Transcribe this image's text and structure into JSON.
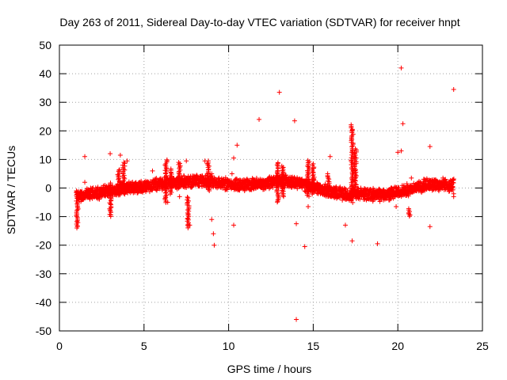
{
  "chart_data": {
    "type": "scatter",
    "title": "Day 263 of 2011, Sidereal Day-to-day VTEC variation (SDTVAR) for receiver hnpt",
    "xlabel": "GPS time / hours",
    "ylabel": "SDTVAR / TECUs",
    "xlim": [
      0,
      25
    ],
    "ylim": [
      -50,
      50
    ],
    "xticks": [
      0,
      5,
      10,
      15,
      20,
      25
    ],
    "yticks": [
      -50,
      -40,
      -30,
      -20,
      -10,
      0,
      10,
      20,
      30,
      40,
      50
    ],
    "xtick_labels": [
      "0",
      "5",
      "10",
      "15",
      "20",
      "25"
    ],
    "ytick_labels": [
      "-50",
      "-40",
      "-30",
      "-20",
      "-10",
      "0",
      "10",
      "20",
      "30",
      "40",
      "50"
    ],
    "grid": true,
    "marker": "+",
    "color": "#ff0000",
    "series": [
      {
        "name": "SDTVAR",
        "x_range": [
          1.0,
          23.3
        ],
        "trend": [
          {
            "x": 1.0,
            "y": -3.0
          },
          {
            "x": 2.0,
            "y": -2.0
          },
          {
            "x": 3.0,
            "y": -1.0
          },
          {
            "x": 4.0,
            "y": 0.0
          },
          {
            "x": 5.0,
            "y": 0.5
          },
          {
            "x": 6.0,
            "y": 1.5
          },
          {
            "x": 7.0,
            "y": 2.0
          },
          {
            "x": 8.0,
            "y": 2.5
          },
          {
            "x": 9.0,
            "y": 2.0
          },
          {
            "x": 10.0,
            "y": 1.5
          },
          {
            "x": 11.0,
            "y": 1.0
          },
          {
            "x": 12.0,
            "y": 1.5
          },
          {
            "x": 13.0,
            "y": 2.5
          },
          {
            "x": 14.0,
            "y": 2.0
          },
          {
            "x": 15.0,
            "y": 0.5
          },
          {
            "x": 16.0,
            "y": -1.5
          },
          {
            "x": 17.0,
            "y": -2.0
          },
          {
            "x": 18.0,
            "y": -2.0
          },
          {
            "x": 19.0,
            "y": -2.5
          },
          {
            "x": 20.0,
            "y": -1.5
          },
          {
            "x": 21.0,
            "y": 0.0
          },
          {
            "x": 22.0,
            "y": 1.5
          },
          {
            "x": 23.0,
            "y": 1.0
          },
          {
            "x": 23.3,
            "y": 1.0
          }
        ],
        "band_halfwidth": 2.5,
        "spikes": [
          {
            "x": 1.05,
            "ymin": -14,
            "ymax": -5
          },
          {
            "x": 3.0,
            "ymin": -10,
            "ymax": 2
          },
          {
            "x": 3.5,
            "ymin": -2,
            "ymax": 7
          },
          {
            "x": 3.8,
            "ymin": 0,
            "ymax": 9
          },
          {
            "x": 6.3,
            "ymin": -5,
            "ymax": 10
          },
          {
            "x": 6.6,
            "ymin": -2,
            "ymax": 7
          },
          {
            "x": 7.1,
            "ymin": 0,
            "ymax": 9
          },
          {
            "x": 7.6,
            "ymin": -14,
            "ymax": -3
          },
          {
            "x": 8.8,
            "ymin": -1,
            "ymax": 9
          },
          {
            "x": 12.9,
            "ymin": -5,
            "ymax": 9
          },
          {
            "x": 13.2,
            "ymin": -3,
            "ymax": 8
          },
          {
            "x": 14.7,
            "ymin": -3,
            "ymax": 10
          },
          {
            "x": 15.0,
            "ymin": -2,
            "ymax": 8
          },
          {
            "x": 15.9,
            "ymin": -1,
            "ymax": 5
          },
          {
            "x": 17.3,
            "ymin": -5,
            "ymax": 22
          },
          {
            "x": 17.5,
            "ymin": -3,
            "ymax": 14
          },
          {
            "x": 20.7,
            "ymin": -10,
            "ymax": -7
          }
        ],
        "outliers": [
          {
            "x": 1.5,
            "y": 11
          },
          {
            "x": 1.5,
            "y": 2
          },
          {
            "x": 3.0,
            "y": 12
          },
          {
            "x": 3.6,
            "y": 11.5
          },
          {
            "x": 4.0,
            "y": 9.5
          },
          {
            "x": 5.5,
            "y": 6
          },
          {
            "x": 6.4,
            "y": -5
          },
          {
            "x": 7.1,
            "y": -3
          },
          {
            "x": 7.7,
            "y": -13
          },
          {
            "x": 7.5,
            "y": 9.5
          },
          {
            "x": 8.6,
            "y": 9.5
          },
          {
            "x": 8.8,
            "y": 9.5
          },
          {
            "x": 9.0,
            "y": -11
          },
          {
            "x": 9.1,
            "y": -16
          },
          {
            "x": 9.15,
            "y": -20
          },
          {
            "x": 9.0,
            "y": 5
          },
          {
            "x": 10.2,
            "y": 5
          },
          {
            "x": 10.3,
            "y": -13
          },
          {
            "x": 10.3,
            "y": 10.5
          },
          {
            "x": 10.5,
            "y": 15
          },
          {
            "x": 11.8,
            "y": 24
          },
          {
            "x": 13.0,
            "y": 33.5
          },
          {
            "x": 13.9,
            "y": 23.5
          },
          {
            "x": 14.0,
            "y": -12.5
          },
          {
            "x": 14.0,
            "y": -46
          },
          {
            "x": 14.5,
            "y": -20.5
          },
          {
            "x": 14.7,
            "y": -6.5
          },
          {
            "x": 15.0,
            "y": 8.5
          },
          {
            "x": 16.0,
            "y": 11
          },
          {
            "x": 16.9,
            "y": -13
          },
          {
            "x": 17.3,
            "y": -18.5
          },
          {
            "x": 18.8,
            "y": -19.5
          },
          {
            "x": 19.9,
            "y": -6.5
          },
          {
            "x": 20.0,
            "y": 12.5
          },
          {
            "x": 20.2,
            "y": 42
          },
          {
            "x": 20.3,
            "y": 22.5
          },
          {
            "x": 20.2,
            "y": 13
          },
          {
            "x": 20.8,
            "y": 3.5
          },
          {
            "x": 21.9,
            "y": 14.5
          },
          {
            "x": 21.9,
            "y": -13.5
          },
          {
            "x": 23.3,
            "y": 34.5
          },
          {
            "x": 23.3,
            "y": -3
          },
          {
            "x": 23.3,
            "y": -2
          }
        ]
      }
    ]
  }
}
